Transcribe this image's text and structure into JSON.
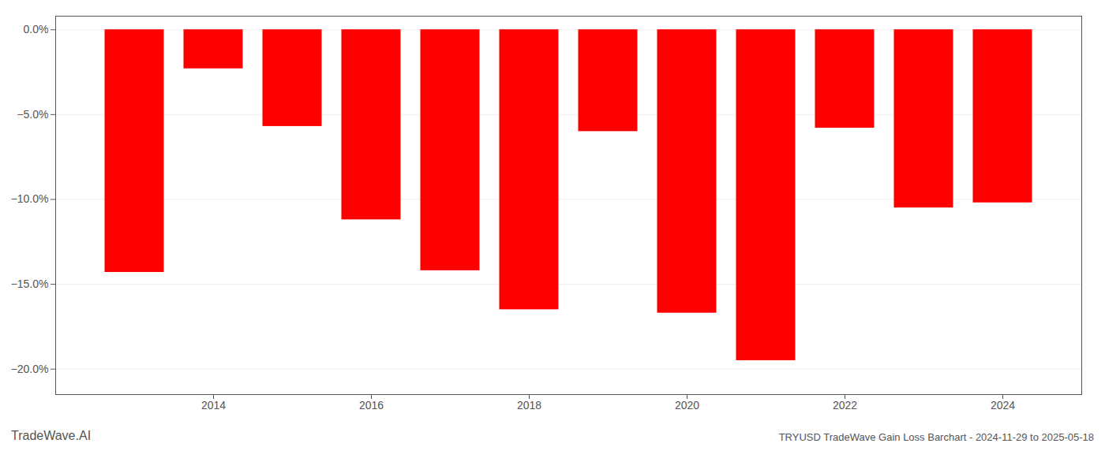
{
  "chart_data": {
    "type": "bar",
    "title": "TRYUSD TradeWave Gain Loss Barchart - 2024-11-29 to 2025-05-18",
    "annotations": [
      "TradeWave.AI"
    ],
    "x": [
      2013,
      2014,
      2015,
      2016,
      2017,
      2018,
      2019,
      2020,
      2021,
      2022,
      2023,
      2024
    ],
    "values": [
      -14.3,
      -2.3,
      -5.7,
      -11.2,
      -14.2,
      -16.5,
      -6.0,
      -16.7,
      -19.5,
      -5.8,
      -10.5,
      -10.2
    ],
    "color": "#ff0000",
    "xlim": [
      2012,
      2025
    ],
    "xticks": [
      2014,
      2016,
      2018,
      2020,
      2022,
      2024
    ],
    "ylim": [
      -21.5,
      0.8
    ],
    "yticks": [
      {
        "value": 0.0,
        "label": "0.0%"
      },
      {
        "value": -5.0,
        "label": "−5.0%"
      },
      {
        "value": -10.0,
        "label": "−10.0%"
      },
      {
        "value": -15.0,
        "label": "−15.0%"
      },
      {
        "value": -20.0,
        "label": "−20.0%"
      }
    ],
    "grid": true
  }
}
